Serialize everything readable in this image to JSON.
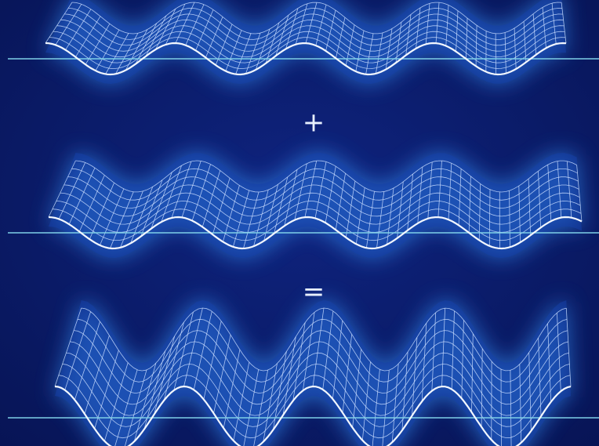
{
  "symbols": {
    "plus": "+",
    "equals": "="
  }
}
